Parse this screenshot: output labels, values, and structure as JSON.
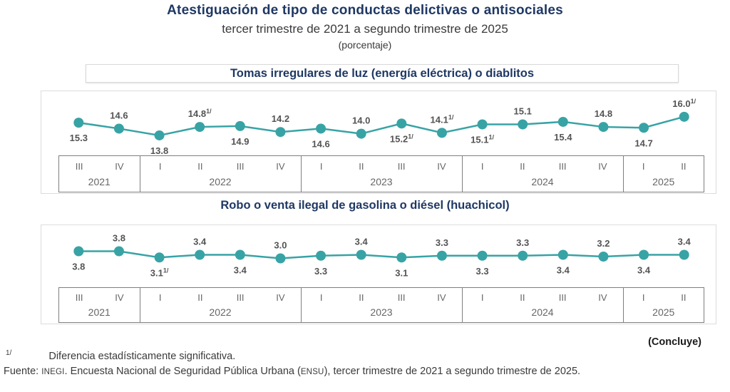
{
  "header": {
    "title": "Atestiguación de tipo de conductas delictivas o antisociales",
    "subtitle": "tercer trimestre de 2021 a segundo trimestre de 2025",
    "unit": "(porcentaje)"
  },
  "colors": {
    "title_navy": "#1F3864",
    "line_teal": "#38A3A5",
    "value_label_gray": "#545454",
    "axis_border_gray": "#7F7F7F",
    "plot_border_gray": "#DCDCDC"
  },
  "axis": {
    "years": [
      {
        "label": "2021",
        "quarters": [
          "III",
          "IV"
        ]
      },
      {
        "label": "2022",
        "quarters": [
          "I",
          "II",
          "III",
          "IV"
        ]
      },
      {
        "label": "2023",
        "quarters": [
          "I",
          "II",
          "III",
          "IV"
        ]
      },
      {
        "label": "2024",
        "quarters": [
          "I",
          "II",
          "III",
          "IV"
        ]
      },
      {
        "label": "2025",
        "quarters": [
          "I",
          "II"
        ]
      }
    ]
  },
  "chart_data": [
    {
      "type": "line",
      "title": "Tomas irregulares  de luz (energía eléctrica)  o diablitos",
      "categories": [
        "III 2021",
        "IV 2021",
        "I 2022",
        "II 2022",
        "III 2022",
        "IV 2022",
        "I 2023",
        "II 2023",
        "III 2023",
        "IV 2023",
        "I 2024",
        "II 2024",
        "III 2024",
        "IV 2024",
        "I 2025",
        "II 2025"
      ],
      "values": [
        15.3,
        14.6,
        13.8,
        14.8,
        14.9,
        14.2,
        14.6,
        14.0,
        15.2,
        14.1,
        15.1,
        15.1,
        15.4,
        14.8,
        14.7,
        16.0
      ],
      "significant_flags": [
        false,
        false,
        false,
        true,
        false,
        false,
        false,
        false,
        true,
        true,
        true,
        false,
        false,
        false,
        false,
        true
      ],
      "footnote_suffix": "1/",
      "ylim": [
        11.1,
        19.1
      ],
      "grid": false,
      "legend": "none"
    },
    {
      "type": "line",
      "title": "Robo o venta ilegal  de gasolina  o diésel  (huachicol)",
      "categories": [
        "III 2021",
        "IV 2021",
        "I 2022",
        "II 2022",
        "III 2022",
        "IV 2022",
        "I 2023",
        "II 2023",
        "III 2023",
        "IV 2023",
        "I 2024",
        "II 2024",
        "III 2024",
        "IV 2024",
        "I 2025",
        "II 2025"
      ],
      "values": [
        3.8,
        3.8,
        3.1,
        3.4,
        3.4,
        3.0,
        3.3,
        3.4,
        3.1,
        3.3,
        3.3,
        3.3,
        3.4,
        3.2,
        3.4,
        3.4
      ],
      "significant_flags": [
        false,
        false,
        true,
        false,
        false,
        false,
        false,
        false,
        false,
        false,
        false,
        false,
        false,
        false,
        false,
        false
      ],
      "footnote_suffix": "1/",
      "ylim": [
        0.0,
        6.8
      ],
      "grid": false,
      "legend": "none"
    }
  ],
  "footer": {
    "concluye": "(Concluye)",
    "footnote_marker": "1/",
    "footnote_text": "Diferencia estadísticamente significativa.",
    "source_parts": {
      "p0": "Fuente: ",
      "p1": "INEGI",
      "p2": ". Encuesta Nacional de Seguridad Pública Urbana (",
      "p3": "ENSU",
      "p4": "), tercer trimestre de 2021 a segundo trimestre de 2025."
    }
  }
}
